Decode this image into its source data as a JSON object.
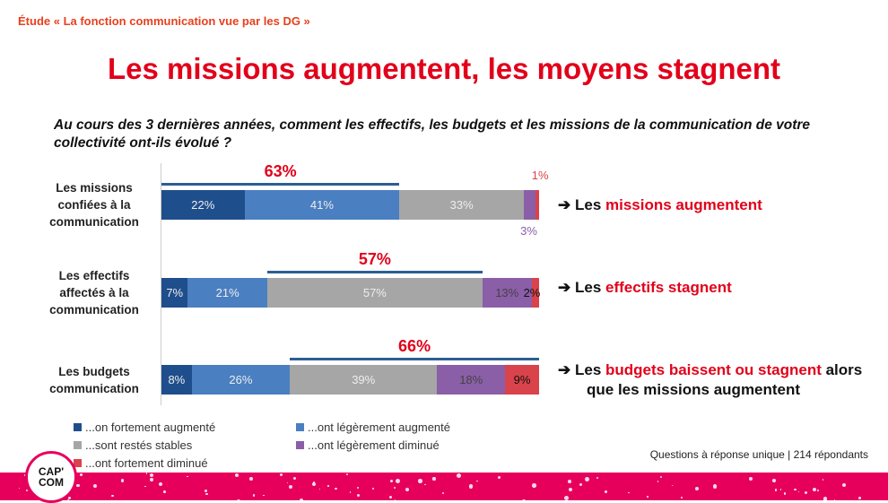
{
  "header": {
    "study": "Étude « La fonction communication vue par les DG »",
    "title": "Les missions augmentent, les moyens stagnent",
    "question": "Au cours des 3 dernières années, comment les effectifs, les budgets et les missions de la communication de votre collectivité ont-ils évolué ?"
  },
  "chart_data": {
    "type": "bar",
    "stacked": true,
    "orientation": "horizontal",
    "xlim": [
      0,
      100
    ],
    "categories": [
      "Les missions confiées à la communication",
      "Les effectifs affectés à la communication",
      "Les budgets communication"
    ],
    "series": [
      {
        "name": "...on fortement augmenté",
        "color": "#1f4e8c",
        "values": [
          22,
          7,
          8
        ],
        "labels": [
          "22%",
          "7%",
          "8%"
        ]
      },
      {
        "name": "...ont légèrement augmenté",
        "color": "#4a7fc1",
        "values": [
          41,
          21,
          26
        ],
        "labels": [
          "41%",
          "21%",
          "26%"
        ]
      },
      {
        "name": "...sont restés stables",
        "color": "#a6a6a6",
        "values": [
          33,
          57,
          39
        ],
        "labels": [
          "33%",
          "57%",
          "39%"
        ]
      },
      {
        "name": "...ont légèrement diminué",
        "color": "#8b5ea8",
        "values": [
          3,
          13,
          18
        ],
        "labels": [
          "3%",
          "13%",
          "18%"
        ]
      },
      {
        "name": "...ont fortement diminué",
        "color": "#d9434b",
        "values": [
          1,
          2,
          9
        ],
        "labels": [
          "1%",
          "2%",
          "9%"
        ]
      }
    ],
    "brackets": [
      {
        "label": "63%",
        "from": 0,
        "to": 63
      },
      {
        "label": "57%",
        "from": 28,
        "to": 85
      },
      {
        "label": "66%",
        "from": 34,
        "to": 100
      }
    ],
    "legend_position": "bottom"
  },
  "conclusions": [
    {
      "pre": "Les ",
      "hl": "missions augmentent",
      "post": ""
    },
    {
      "pre": "Les ",
      "hl": "effectifs stagnent",
      "post": ""
    },
    {
      "pre": "Les ",
      "hl": "budgets baissent ou stagnent",
      "post": " alors que les missions augmentent"
    }
  ],
  "arrow": "➔",
  "footer": "Questions à réponse unique | 214 répondants",
  "logo": {
    "line1": "CAP'",
    "line2": "COM"
  },
  "colors": {
    "accent": "#e2001a",
    "band": "#e6005c"
  }
}
